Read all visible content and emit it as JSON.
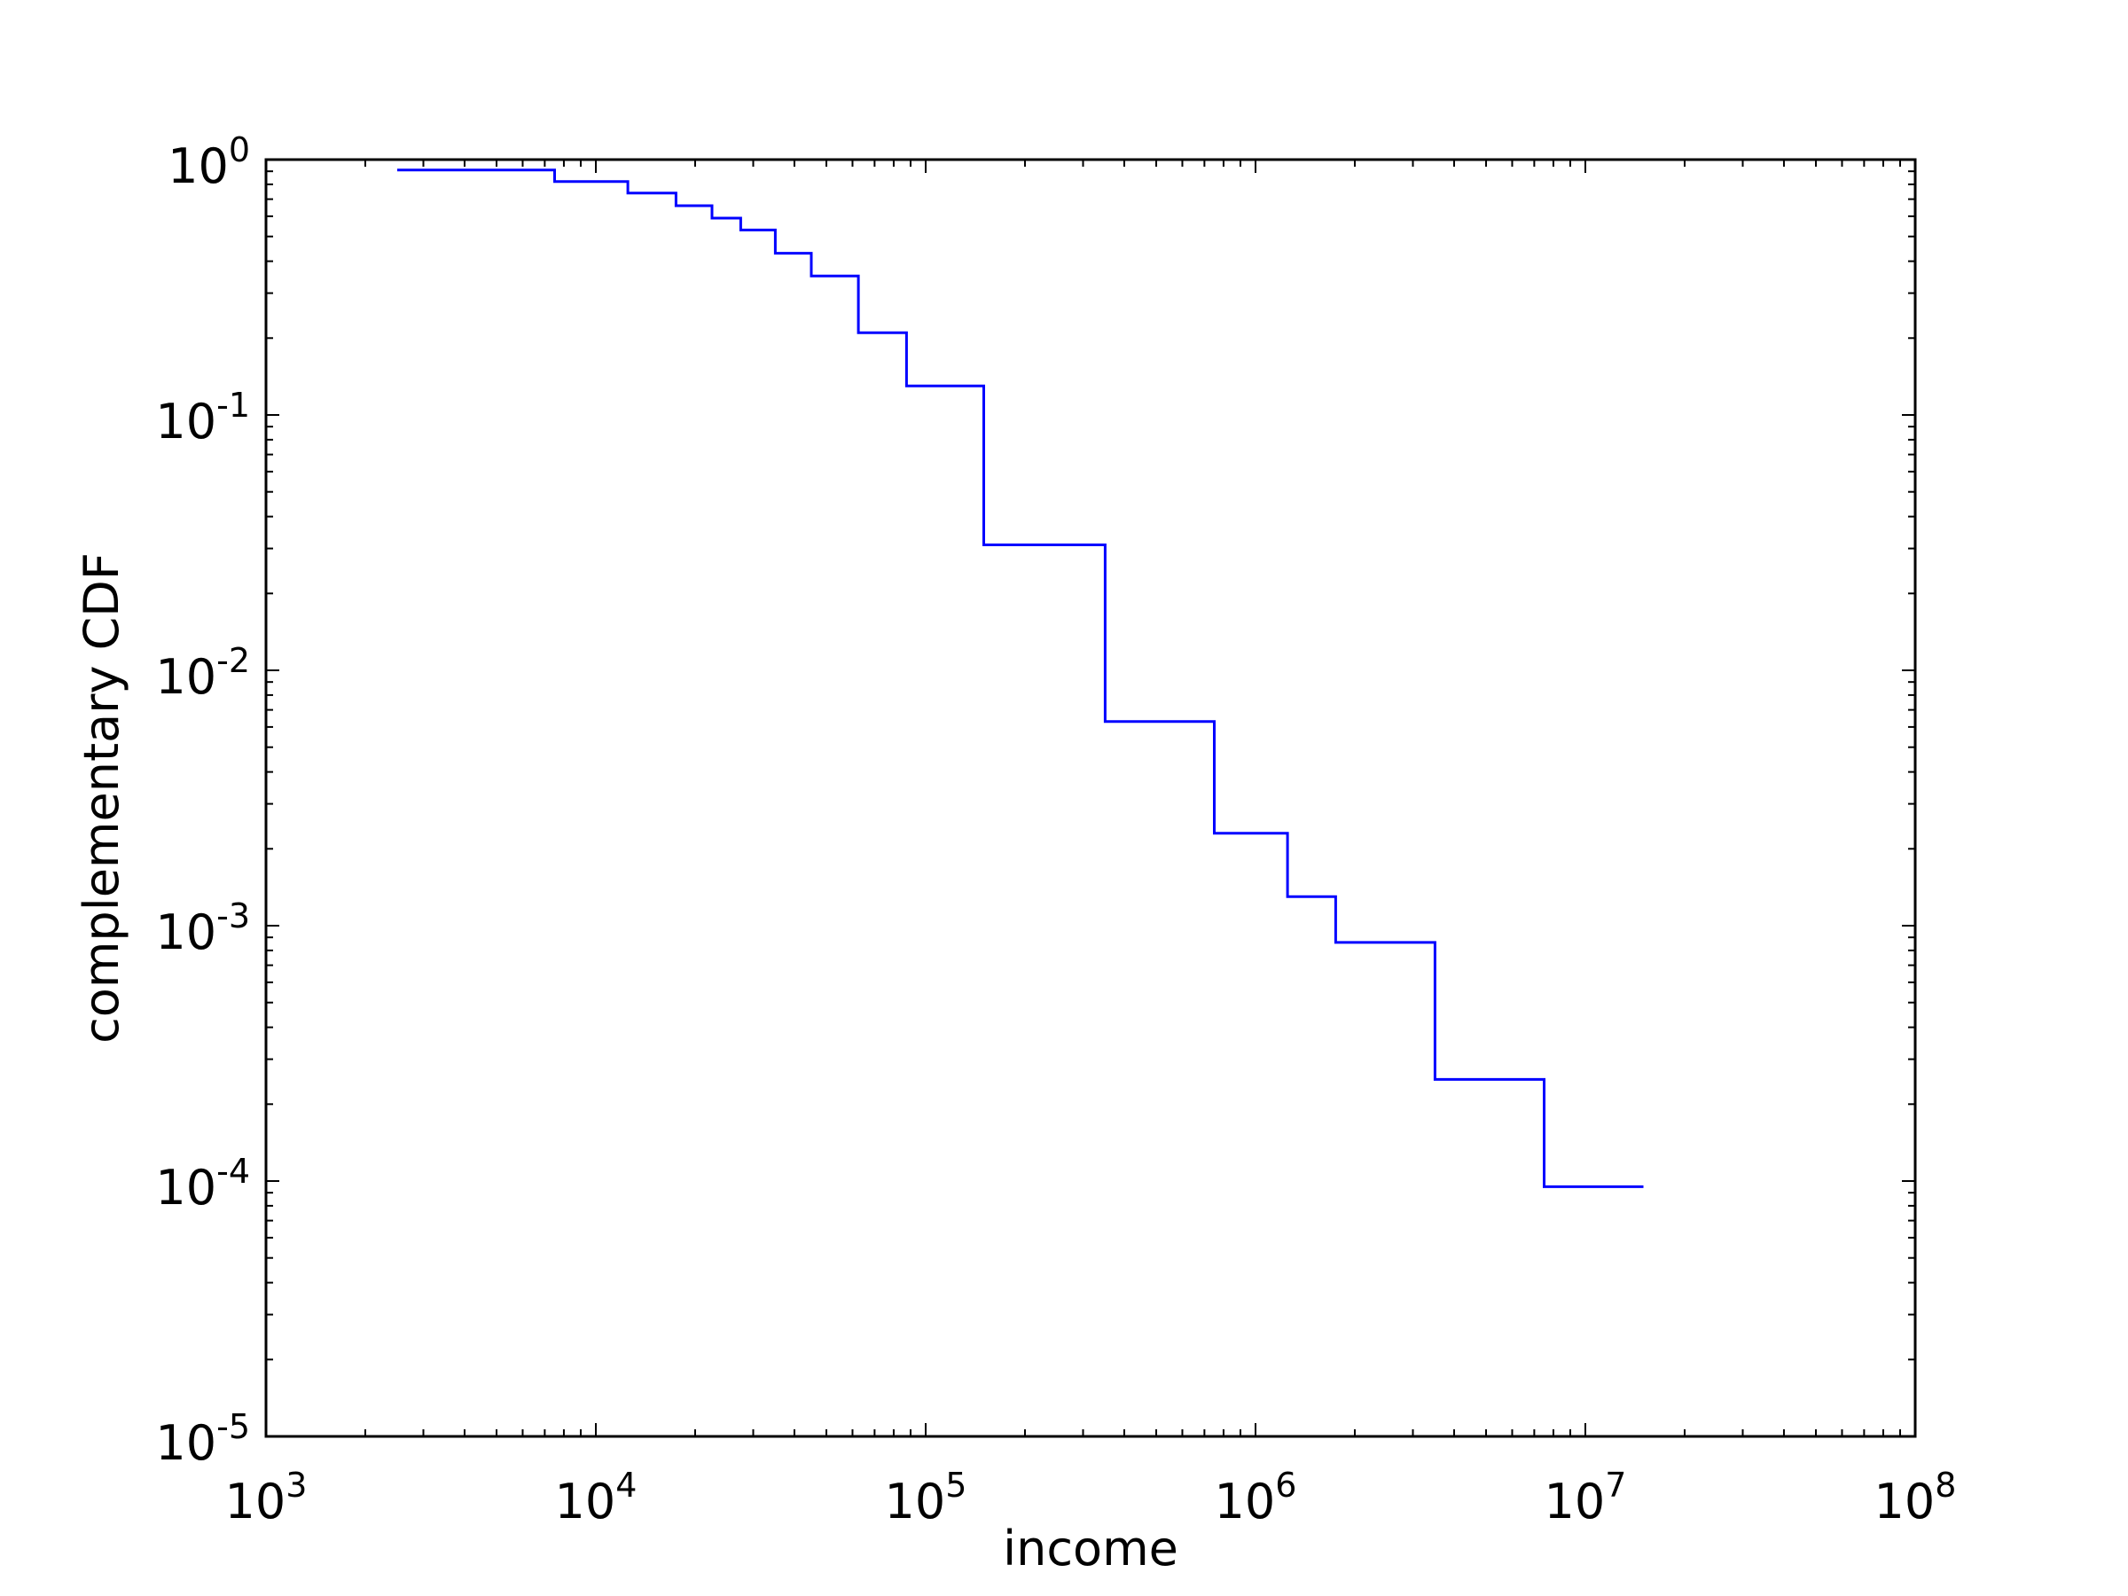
{
  "chart_data": {
    "type": "line",
    "step": "post",
    "xscale": "log",
    "yscale": "log",
    "xlim": [
      1000,
      100000000
    ],
    "ylim": [
      1e-05,
      1
    ],
    "xlabel": "income",
    "ylabel": "complementary CDF",
    "title": "",
    "xtick_labels": [
      {
        "base": "10",
        "exp": "3"
      },
      {
        "base": "10",
        "exp": "4"
      },
      {
        "base": "10",
        "exp": "5"
      },
      {
        "base": "10",
        "exp": "6"
      },
      {
        "base": "10",
        "exp": "7"
      },
      {
        "base": "10",
        "exp": "8"
      }
    ],
    "ytick_labels": [
      {
        "base": "10",
        "exp": "-5"
      },
      {
        "base": "10",
        "exp": "-4"
      },
      {
        "base": "10",
        "exp": "-3"
      },
      {
        "base": "10",
        "exp": "-2"
      },
      {
        "base": "10",
        "exp": "-1"
      },
      {
        "base": "10",
        "exp": "0"
      }
    ],
    "grid": false,
    "series": [
      {
        "color": "#0000ff",
        "x": [
          2500,
          7500,
          12500,
          17500,
          22500,
          27500,
          35000,
          45000,
          62500,
          87500,
          150000,
          350000,
          750000,
          1250000,
          1750000,
          3500000,
          7500000,
          15000000
        ],
        "y": [
          0.91,
          0.82,
          0.74,
          0.66,
          0.59,
          0.53,
          0.43,
          0.35,
          0.21,
          0.13,
          0.031,
          0.0063,
          0.0023,
          0.0013,
          0.00086,
          0.00025,
          9.5e-05,
          9.5e-05
        ]
      }
    ]
  }
}
